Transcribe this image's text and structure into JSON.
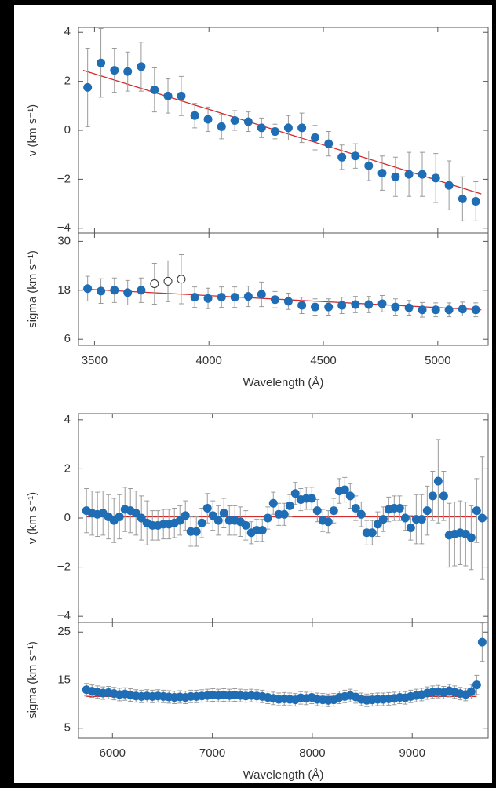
{
  "chart_data": [
    {
      "type": "scatter",
      "ylabel": "v (km s⁻¹)",
      "color": "#1f6db5",
      "error_color": "#9a9a9a",
      "fit_color": "#d42a2a",
      "x": [
        3470,
        3528,
        3587,
        3645,
        3704,
        3762,
        3821,
        3879,
        3938,
        3996,
        4055,
        4113,
        4172,
        4230,
        4289,
        4347,
        4406,
        4464,
        4523,
        4581,
        4640,
        4698,
        4757,
        4815,
        4874,
        4932,
        4991,
        5049,
        5108,
        5166
      ],
      "values": [
        1.75,
        2.75,
        2.45,
        2.4,
        2.6,
        1.65,
        1.4,
        1.4,
        0.6,
        0.45,
        0.15,
        0.4,
        0.35,
        0.1,
        -0.05,
        0.1,
        0.1,
        -0.3,
        -0.55,
        -1.1,
        -1.05,
        -1.45,
        -1.75,
        -1.9,
        -1.8,
        -1.8,
        -1.95,
        -2.25,
        -2.8,
        -2.9
      ],
      "errors": [
        1.6,
        1.4,
        0.9,
        0.8,
        1.0,
        0.9,
        0.7,
        0.8,
        0.5,
        0.5,
        0.5,
        0.4,
        0.4,
        0.4,
        0.3,
        0.5,
        0.6,
        0.5,
        0.5,
        0.5,
        0.5,
        0.6,
        0.7,
        0.8,
        0.9,
        0.9,
        1.0,
        1.0,
        0.9,
        0.8
      ],
      "fit": {
        "x": [
          3450,
          5190
        ],
        "values": [
          2.45,
          -2.6
        ]
      },
      "xlim": [
        3430,
        5220
      ],
      "ylim": [
        -4.2,
        4.2
      ],
      "yticks": [
        {
          "value": -4,
          "label": "−4"
        },
        {
          "value": -2,
          "label": "−2"
        },
        0,
        2,
        4
      ]
    },
    {
      "type": "scatter",
      "ylabel": "sigma (km s⁻¹)",
      "xlabel": "Wavelength (Å)",
      "color": "#1f6db5",
      "error_color": "#9a9a9a",
      "fit_color": "#d42a2a",
      "x": [
        3470,
        3528,
        3587,
        3645,
        3704,
        3762,
        3821,
        3879,
        3938,
        3996,
        4055,
        4113,
        4172,
        4230,
        4289,
        4347,
        4406,
        4464,
        4523,
        4581,
        4640,
        4698,
        4757,
        4815,
        4874,
        4932,
        4991,
        5049,
        5108,
        5166
      ],
      "values": [
        18.4,
        17.8,
        18,
        17.4,
        18,
        19.6,
        20.2,
        20.7,
        16.3,
        16,
        16.3,
        16.3,
        16.5,
        17,
        15.7,
        15.3,
        14.3,
        13.9,
        13.9,
        14.3,
        14.5,
        14.5,
        14.7,
        13.9,
        13.7,
        13.2,
        13.2,
        13.2,
        13.4,
        13.2
      ],
      "errors": [
        3,
        3,
        3,
        3,
        3,
        5,
        5,
        6,
        2.5,
        2.5,
        2.5,
        2.5,
        2.5,
        3,
        2,
        2,
        2,
        2,
        2,
        2,
        2,
        2,
        2,
        2,
        1.8,
        1.8,
        1.7,
        1.7,
        1.7,
        1.7
      ],
      "hollow": [
        false,
        false,
        false,
        false,
        false,
        true,
        true,
        true,
        false,
        false,
        false,
        false,
        false,
        false,
        false,
        false,
        false,
        false,
        false,
        false,
        false,
        false,
        false,
        false,
        false,
        false,
        false,
        false,
        false,
        false
      ],
      "fit": {
        "x": [
          3450,
          5190
        ],
        "values": [
          18.3,
          13.2
        ]
      },
      "xlim": [
        3430,
        5220
      ],
      "ylim": [
        4.5,
        32
      ],
      "xticks": [
        3500,
        4000,
        4500,
        5000
      ],
      "yticks": [
        6,
        18,
        30
      ]
    },
    {
      "type": "scatter",
      "ylabel": "v (km s⁻¹)",
      "color": "#1f6db5",
      "error_color": "#9a9a9a",
      "fit_color": "#d42a2a",
      "x": [
        5740,
        5795,
        5850,
        5905,
        5960,
        6015,
        6070,
        6125,
        6180,
        6235,
        6290,
        6345,
        6400,
        6455,
        6510,
        6565,
        6620,
        6675,
        6730,
        6785,
        6840,
        6895,
        6950,
        7005,
        7060,
        7115,
        7170,
        7225,
        7280,
        7335,
        7390,
        7445,
        7500,
        7555,
        7610,
        7665,
        7720,
        7775,
        7830,
        7885,
        7940,
        7995,
        8050,
        8105,
        8160,
        8215,
        8270,
        8325,
        8380,
        8435,
        8490,
        8545,
        8600,
        8655,
        8710,
        8765,
        8820,
        8875,
        8930,
        8985,
        9040,
        9095,
        9150,
        9205,
        9260,
        9315,
        9370,
        9425,
        9480,
        9535,
        9590,
        9645,
        9700
      ],
      "values": [
        0.3,
        0.2,
        0.15,
        0.2,
        0.05,
        -0.1,
        0.05,
        0.35,
        0.3,
        0.2,
        0.0,
        -0.2,
        -0.3,
        -0.3,
        -0.25,
        -0.25,
        -0.2,
        -0.1,
        0.1,
        -0.55,
        -0.55,
        -0.2,
        0.4,
        0.1,
        -0.1,
        0.2,
        -0.1,
        -0.1,
        -0.15,
        -0.3,
        -0.6,
        -0.5,
        -0.5,
        0.0,
        0.6,
        0.15,
        0.15,
        0.5,
        1.0,
        0.75,
        0.8,
        0.8,
        0.3,
        -0.1,
        -0.15,
        0.3,
        1.1,
        1.15,
        0.9,
        0.4,
        0.15,
        -0.6,
        -0.6,
        -0.25,
        -0.05,
        0.35,
        0.4,
        0.4,
        0.0,
        -0.4,
        -0.05,
        -0.05,
        0.3,
        0.9,
        1.5,
        0.9,
        -0.7,
        -0.65,
        -0.6,
        -0.65,
        -0.8,
        0.3,
        0.0
      ],
      "errors": [
        0.9,
        0.9,
        0.9,
        0.9,
        0.9,
        0.9,
        0.9,
        0.9,
        0.9,
        0.9,
        0.9,
        0.9,
        0.6,
        0.6,
        0.6,
        0.6,
        0.6,
        0.6,
        0.6,
        0.6,
        0.6,
        0.6,
        0.6,
        0.6,
        0.6,
        0.6,
        0.6,
        0.6,
        0.6,
        0.6,
        0.45,
        0.45,
        0.45,
        0.45,
        0.45,
        0.45,
        0.45,
        0.45,
        0.45,
        0.45,
        0.45,
        0.45,
        0.45,
        0.45,
        0.45,
        0.5,
        0.5,
        0.5,
        0.5,
        0.5,
        0.5,
        0.5,
        0.5,
        0.5,
        0.5,
        0.5,
        0.5,
        0.5,
        0.5,
        0.5,
        1.0,
        1.0,
        1.0,
        1.0,
        1.7,
        1.0,
        1.3,
        1.3,
        1.3,
        1.3,
        1.3,
        1.3,
        2.5
      ],
      "fit": {
        "x": [
          5740,
          9645
        ],
        "values": [
          0.05,
          0.05
        ]
      },
      "xlim": [
        5660,
        9760
      ],
      "ylim": [
        -4.25,
        4.25
      ],
      "yticks": [
        {
          "value": -4,
          "label": "−4"
        },
        {
          "value": -2,
          "label": "−2"
        },
        0,
        2,
        4
      ]
    },
    {
      "type": "scatter",
      "ylabel": "sigma (km s⁻¹)",
      "xlabel": "Wavelength (Å)",
      "color": "#1f6db5",
      "error_color": "#9a9a9a",
      "fit_color": "#d42a2a",
      "x": [
        5740,
        5795,
        5850,
        5905,
        5960,
        6015,
        6070,
        6125,
        6180,
        6235,
        6290,
        6345,
        6400,
        6455,
        6510,
        6565,
        6620,
        6675,
        6730,
        6785,
        6840,
        6895,
        6950,
        7005,
        7060,
        7115,
        7170,
        7225,
        7280,
        7335,
        7390,
        7445,
        7500,
        7555,
        7610,
        7665,
        7720,
        7775,
        7830,
        7885,
        7940,
        7995,
        8050,
        8105,
        8160,
        8215,
        8270,
        8325,
        8380,
        8435,
        8490,
        8545,
        8600,
        8655,
        8710,
        8765,
        8820,
        8875,
        8930,
        8985,
        9040,
        9095,
        9150,
        9205,
        9260,
        9315,
        9370,
        9425,
        9480,
        9535,
        9590,
        9645,
        9700
      ],
      "values": [
        13.0,
        12.7,
        12.5,
        12.3,
        12.4,
        12.2,
        12.0,
        12.1,
        11.9,
        11.7,
        11.6,
        11.7,
        11.6,
        11.7,
        11.6,
        11.5,
        11.4,
        11.5,
        11.4,
        11.6,
        11.6,
        11.7,
        11.8,
        11.9,
        11.8,
        11.9,
        11.8,
        11.9,
        11.8,
        11.7,
        11.8,
        11.7,
        11.6,
        11.4,
        11.2,
        11.0,
        11.1,
        11.0,
        10.9,
        11.3,
        11.2,
        11.4,
        11.0,
        10.9,
        10.8,
        10.9,
        11.4,
        11.6,
        11.8,
        11.5,
        11.0,
        10.8,
        10.9,
        11.0,
        11.0,
        11.1,
        11.2,
        11.4,
        11.3,
        11.6,
        11.8,
        12.0,
        12.3,
        12.5,
        12.6,
        12.4,
        12.8,
        12.5,
        12.2,
        12.0,
        12.6,
        14.0,
        22.9
      ],
      "errors": [
        1.3,
        1.3,
        1.3,
        1.3,
        1.3,
        1.3,
        1.3,
        1.3,
        1.3,
        1.3,
        1.3,
        1.3,
        1.3,
        1.3,
        1.3,
        1.3,
        1.3,
        1.3,
        1.3,
        1.3,
        1.3,
        1.3,
        1.3,
        1.3,
        1.3,
        1.3,
        1.3,
        1.3,
        1.3,
        1.3,
        1.3,
        1.3,
        1.3,
        1.3,
        1.3,
        1.3,
        1.3,
        1.3,
        1.3,
        1.3,
        1.3,
        1.3,
        1.3,
        1.3,
        1.3,
        1.3,
        1.3,
        1.3,
        1.3,
        1.3,
        1.3,
        1.3,
        1.3,
        1.3,
        1.3,
        1.3,
        1.3,
        1.3,
        1.3,
        1.3,
        1.3,
        1.3,
        1.3,
        1.3,
        1.3,
        1.3,
        1.3,
        1.3,
        1.3,
        1.3,
        1.5,
        2.0,
        4.0
      ],
      "fit": {
        "x": [
          5740,
          9645
        ],
        "values": [
          11.6,
          11.6
        ]
      },
      "xlim": [
        5660,
        9760
      ],
      "ylim": [
        3,
        27
      ],
      "xticks": [
        6000,
        7000,
        8000,
        9000
      ],
      "yticks": [
        5,
        15,
        25
      ]
    }
  ]
}
